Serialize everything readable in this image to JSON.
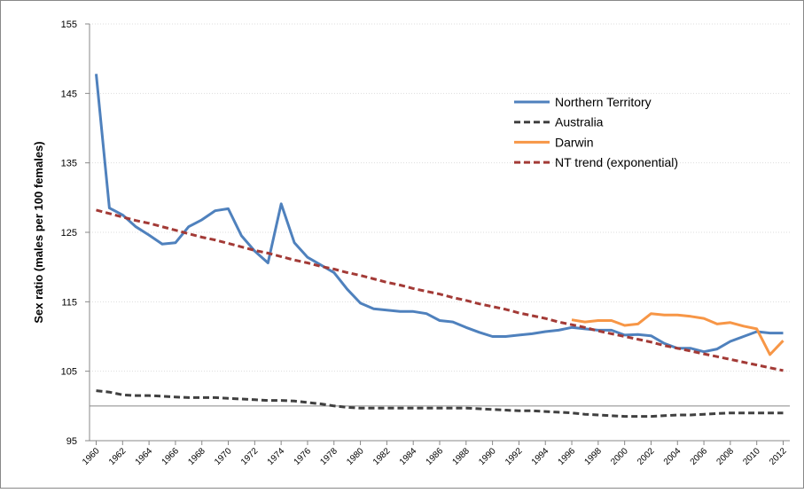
{
  "chart_data": {
    "type": "line",
    "y_label": "Sex ratio (males per 100 females)",
    "x": [
      1960,
      1961,
      1962,
      1963,
      1964,
      1965,
      1966,
      1967,
      1968,
      1969,
      1970,
      1971,
      1972,
      1973,
      1974,
      1975,
      1976,
      1977,
      1978,
      1979,
      1980,
      1981,
      1982,
      1983,
      1984,
      1985,
      1986,
      1987,
      1988,
      1989,
      1990,
      1991,
      1992,
      1993,
      1994,
      1995,
      1996,
      1997,
      1998,
      1999,
      2000,
      2001,
      2002,
      2003,
      2004,
      2005,
      2006,
      2007,
      2008,
      2009,
      2010,
      2011,
      2012
    ],
    "xlim": [
      1960,
      2012
    ],
    "xticks": [
      1960,
      1962,
      1964,
      1966,
      1968,
      1970,
      1972,
      1974,
      1976,
      1978,
      1980,
      1982,
      1984,
      1986,
      1988,
      1990,
      1992,
      1994,
      1996,
      1998,
      2000,
      2002,
      2004,
      2006,
      2008,
      2010,
      2012
    ],
    "ylim": [
      95,
      155
    ],
    "yticks": [
      95,
      105,
      115,
      125,
      135,
      145,
      155
    ],
    "grid": true,
    "reference_line": 100,
    "legend": "top-right",
    "series": [
      {
        "name": "Northern Territory",
        "color": "#4f81bd",
        "dashed": false,
        "values": [
          147.8,
          128.5,
          127.5,
          125.8,
          124.6,
          123.3,
          123.5,
          125.8,
          126.8,
          128.1,
          128.4,
          124.5,
          122.3,
          120.6,
          129.1,
          123.5,
          121.4,
          120.3,
          119.2,
          116.8,
          114.8,
          114.0,
          113.8,
          113.6,
          113.6,
          113.3,
          112.3,
          112.1,
          111.3,
          110.6,
          110.0,
          110.0,
          110.2,
          110.4,
          110.7,
          110.9,
          111.3,
          111.1,
          110.9,
          110.9,
          110.2,
          110.3,
          110.1,
          109.0,
          108.3,
          108.3,
          107.8,
          108.2,
          109.3,
          110.0,
          110.7,
          110.5,
          110.5
        ]
      },
      {
        "name": "Australia",
        "color": "#404040",
        "dashed": true,
        "values": [
          102.2,
          102.0,
          101.6,
          101.5,
          101.5,
          101.4,
          101.3,
          101.2,
          101.2,
          101.2,
          101.1,
          101.0,
          100.9,
          100.8,
          100.8,
          100.7,
          100.5,
          100.3,
          100.0,
          99.8,
          99.7,
          99.7,
          99.7,
          99.7,
          99.7,
          99.7,
          99.7,
          99.7,
          99.7,
          99.6,
          99.5,
          99.4,
          99.3,
          99.3,
          99.2,
          99.1,
          99.0,
          98.8,
          98.7,
          98.6,
          98.5,
          98.5,
          98.5,
          98.6,
          98.7,
          98.7,
          98.8,
          98.9,
          99.0,
          99.0,
          99.0,
          99.0,
          99.0
        ]
      },
      {
        "name": "Darwin",
        "color": "#f79646",
        "dashed": false,
        "values": [
          null,
          null,
          null,
          null,
          null,
          null,
          null,
          null,
          null,
          null,
          null,
          null,
          null,
          null,
          null,
          null,
          null,
          null,
          null,
          null,
          null,
          null,
          null,
          null,
          null,
          null,
          null,
          null,
          null,
          null,
          null,
          null,
          null,
          null,
          null,
          null,
          112.4,
          112.1,
          112.3,
          112.3,
          111.6,
          111.8,
          113.3,
          113.1,
          113.1,
          112.9,
          112.6,
          111.8,
          112.0,
          111.5,
          111.1,
          107.4,
          109.4
        ]
      },
      {
        "name": "NT trend (exponential)",
        "color": "#a33a36",
        "dashed": true,
        "values": [
          128.2,
          127.7,
          127.2,
          126.7,
          126.3,
          125.8,
          125.3,
          124.8,
          124.3,
          123.9,
          123.4,
          122.9,
          122.4,
          122.0,
          121.5,
          121.0,
          120.6,
          120.1,
          119.7,
          119.2,
          118.8,
          118.3,
          117.8,
          117.4,
          116.9,
          116.5,
          116.1,
          115.6,
          115.2,
          114.7,
          114.3,
          113.9,
          113.4,
          113.0,
          112.6,
          112.1,
          111.7,
          111.3,
          110.8,
          110.4,
          110.0,
          109.6,
          109.2,
          108.7,
          108.3,
          107.9,
          107.5,
          107.1,
          106.7,
          106.3,
          105.9,
          105.5,
          105.1
        ]
      }
    ]
  }
}
